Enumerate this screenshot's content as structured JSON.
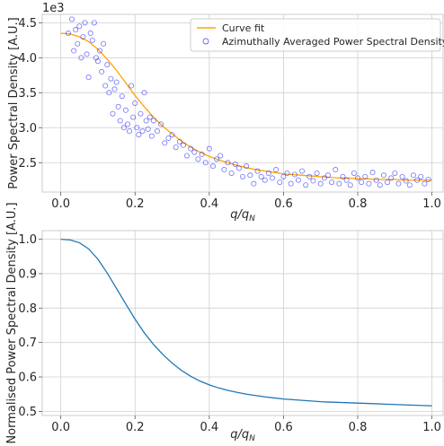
{
  "chart_data": [
    {
      "type": "scatter",
      "xlabel": "q/q_N",
      "ylabel": "Power Spectral Density [A.U.]",
      "offset_text": "1e3",
      "ylim_scaled": [
        2.08,
        4.62
      ],
      "xlim": [
        -0.05,
        1.03
      ],
      "xticks": [
        0.0,
        0.2,
        0.4,
        0.6,
        0.8,
        1.0
      ],
      "xtick_labels": [
        "0.0",
        "0.2",
        "0.4",
        "0.6",
        "0.8",
        "1.0"
      ],
      "yticks": [
        2.5,
        3.0,
        3.5,
        4.0,
        4.5
      ],
      "ytick_labels": [
        "2.5",
        "3.0",
        "3.5",
        "4.0",
        "4.5"
      ],
      "grid": true,
      "legend_position": "top-right",
      "series": [
        {
          "name": "Curve fit",
          "kind": "line",
          "color": "#ffa500",
          "x": [
            0.0,
            0.025,
            0.05,
            0.075,
            0.1,
            0.125,
            0.15,
            0.175,
            0.2,
            0.225,
            0.25,
            0.275,
            0.3,
            0.325,
            0.35,
            0.375,
            0.4,
            0.425,
            0.45,
            0.475,
            0.5,
            0.525,
            0.55,
            0.575,
            0.6,
            0.625,
            0.65,
            0.675,
            0.7,
            0.725,
            0.75,
            0.775,
            0.8,
            0.825,
            0.85,
            0.875,
            0.9,
            0.925,
            0.95,
            0.975,
            1.0
          ],
          "y": [
            4.35,
            4.34,
            4.3,
            4.23,
            4.12,
            3.98,
            3.82,
            3.64,
            3.46,
            3.3,
            3.15,
            3.02,
            2.91,
            2.81,
            2.72,
            2.65,
            2.59,
            2.54,
            2.5,
            2.46,
            2.43,
            2.4,
            2.38,
            2.36,
            2.34,
            2.33,
            2.32,
            2.31,
            2.3,
            2.29,
            2.28,
            2.28,
            2.27,
            2.27,
            2.26,
            2.26,
            2.26,
            2.25,
            2.25,
            2.25,
            2.25
          ]
        },
        {
          "name": "Azimuthally Averaged Power Spectral Density",
          "kind": "scatter",
          "color": "#0000ff",
          "x": [
            0.02,
            0.03,
            0.035,
            0.04,
            0.045,
            0.05,
            0.055,
            0.06,
            0.065,
            0.07,
            0.075,
            0.08,
            0.085,
            0.09,
            0.095,
            0.1,
            0.105,
            0.11,
            0.115,
            0.12,
            0.125,
            0.13,
            0.135,
            0.14,
            0.145,
            0.15,
            0.155,
            0.16,
            0.165,
            0.17,
            0.175,
            0.18,
            0.185,
            0.19,
            0.195,
            0.2,
            0.205,
            0.21,
            0.215,
            0.22,
            0.225,
            0.23,
            0.235,
            0.24,
            0.245,
            0.25,
            0.26,
            0.27,
            0.28,
            0.29,
            0.3,
            0.31,
            0.32,
            0.33,
            0.34,
            0.35,
            0.36,
            0.37,
            0.38,
            0.39,
            0.4,
            0.41,
            0.42,
            0.43,
            0.44,
            0.45,
            0.46,
            0.47,
            0.48,
            0.49,
            0.5,
            0.51,
            0.52,
            0.53,
            0.54,
            0.55,
            0.56,
            0.57,
            0.58,
            0.59,
            0.6,
            0.61,
            0.62,
            0.63,
            0.64,
            0.65,
            0.66,
            0.67,
            0.68,
            0.69,
            0.7,
            0.71,
            0.72,
            0.73,
            0.74,
            0.75,
            0.76,
            0.77,
            0.78,
            0.79,
            0.8,
            0.81,
            0.82,
            0.83,
            0.84,
            0.85,
            0.86,
            0.87,
            0.88,
            0.89,
            0.9,
            0.91,
            0.92,
            0.93,
            0.94,
            0.95,
            0.96,
            0.97,
            0.98,
            0.99
          ],
          "y": [
            4.35,
            4.55,
            4.1,
            4.4,
            4.2,
            4.45,
            4.0,
            4.3,
            4.5,
            4.05,
            3.72,
            4.35,
            4.25,
            4.5,
            4.0,
            3.95,
            4.1,
            3.8,
            4.2,
            3.6,
            3.9,
            3.5,
            3.7,
            3.2,
            3.55,
            3.65,
            3.3,
            3.1,
            3.45,
            3.0,
            3.25,
            3.05,
            2.95,
            3.6,
            3.15,
            3.35,
            3.0,
            2.9,
            3.2,
            2.95,
            3.5,
            3.1,
            2.98,
            3.15,
            2.88,
            3.1,
            2.95,
            3.05,
            2.78,
            2.85,
            2.9,
            2.72,
            2.8,
            2.75,
            2.6,
            2.7,
            2.65,
            2.55,
            2.62,
            2.5,
            2.7,
            2.45,
            2.55,
            2.6,
            2.4,
            2.5,
            2.35,
            2.48,
            2.42,
            2.3,
            2.45,
            2.32,
            2.2,
            2.38,
            2.3,
            2.25,
            2.35,
            2.28,
            2.4,
            2.22,
            2.3,
            2.35,
            2.2,
            2.33,
            2.25,
            2.38,
            2.18,
            2.3,
            2.24,
            2.35,
            2.2,
            2.28,
            2.32,
            2.22,
            2.4,
            2.2,
            2.3,
            2.25,
            2.18,
            2.35,
            2.28,
            2.22,
            2.3,
            2.2,
            2.36,
            2.25,
            2.18,
            2.32,
            2.22,
            2.28,
            2.35,
            2.2,
            2.3,
            2.24,
            2.18,
            2.32,
            2.25,
            2.3,
            2.2,
            2.26
          ]
        }
      ]
    },
    {
      "type": "line",
      "xlabel": "q/q_N",
      "ylabel": "Normalised Power Spectral Density [A.U.]",
      "ylim": [
        0.488,
        1.025
      ],
      "xlim": [
        -0.05,
        1.03
      ],
      "xticks": [
        0.0,
        0.2,
        0.4,
        0.6,
        0.8,
        1.0
      ],
      "xtick_labels": [
        "0.0",
        "0.2",
        "0.4",
        "0.6",
        "0.8",
        "1.0"
      ],
      "yticks": [
        0.5,
        0.6,
        0.7,
        0.8,
        0.9,
        1.0
      ],
      "ytick_labels": [
        "0.5",
        "0.6",
        "0.7",
        "0.8",
        "0.9",
        "1.0"
      ],
      "grid": true,
      "series": [
        {
          "color": "#1f77b4",
          "x": [
            0.0,
            0.025,
            0.05,
            0.075,
            0.1,
            0.125,
            0.15,
            0.175,
            0.2,
            0.225,
            0.25,
            0.275,
            0.3,
            0.325,
            0.35,
            0.375,
            0.4,
            0.425,
            0.45,
            0.475,
            0.5,
            0.525,
            0.55,
            0.575,
            0.6,
            0.625,
            0.65,
            0.675,
            0.7,
            0.725,
            0.75,
            0.775,
            0.8,
            0.825,
            0.85,
            0.875,
            0.9,
            0.925,
            0.95,
            0.975,
            1.0
          ],
          "y": [
            1.0,
            0.998,
            0.99,
            0.972,
            0.942,
            0.902,
            0.857,
            0.812,
            0.768,
            0.728,
            0.694,
            0.665,
            0.64,
            0.619,
            0.602,
            0.588,
            0.577,
            0.568,
            0.561,
            0.555,
            0.55,
            0.546,
            0.542,
            0.539,
            0.536,
            0.534,
            0.532,
            0.53,
            0.528,
            0.527,
            0.526,
            0.525,
            0.524,
            0.523,
            0.522,
            0.521,
            0.52,
            0.519,
            0.518,
            0.517,
            0.516
          ]
        }
      ]
    }
  ]
}
